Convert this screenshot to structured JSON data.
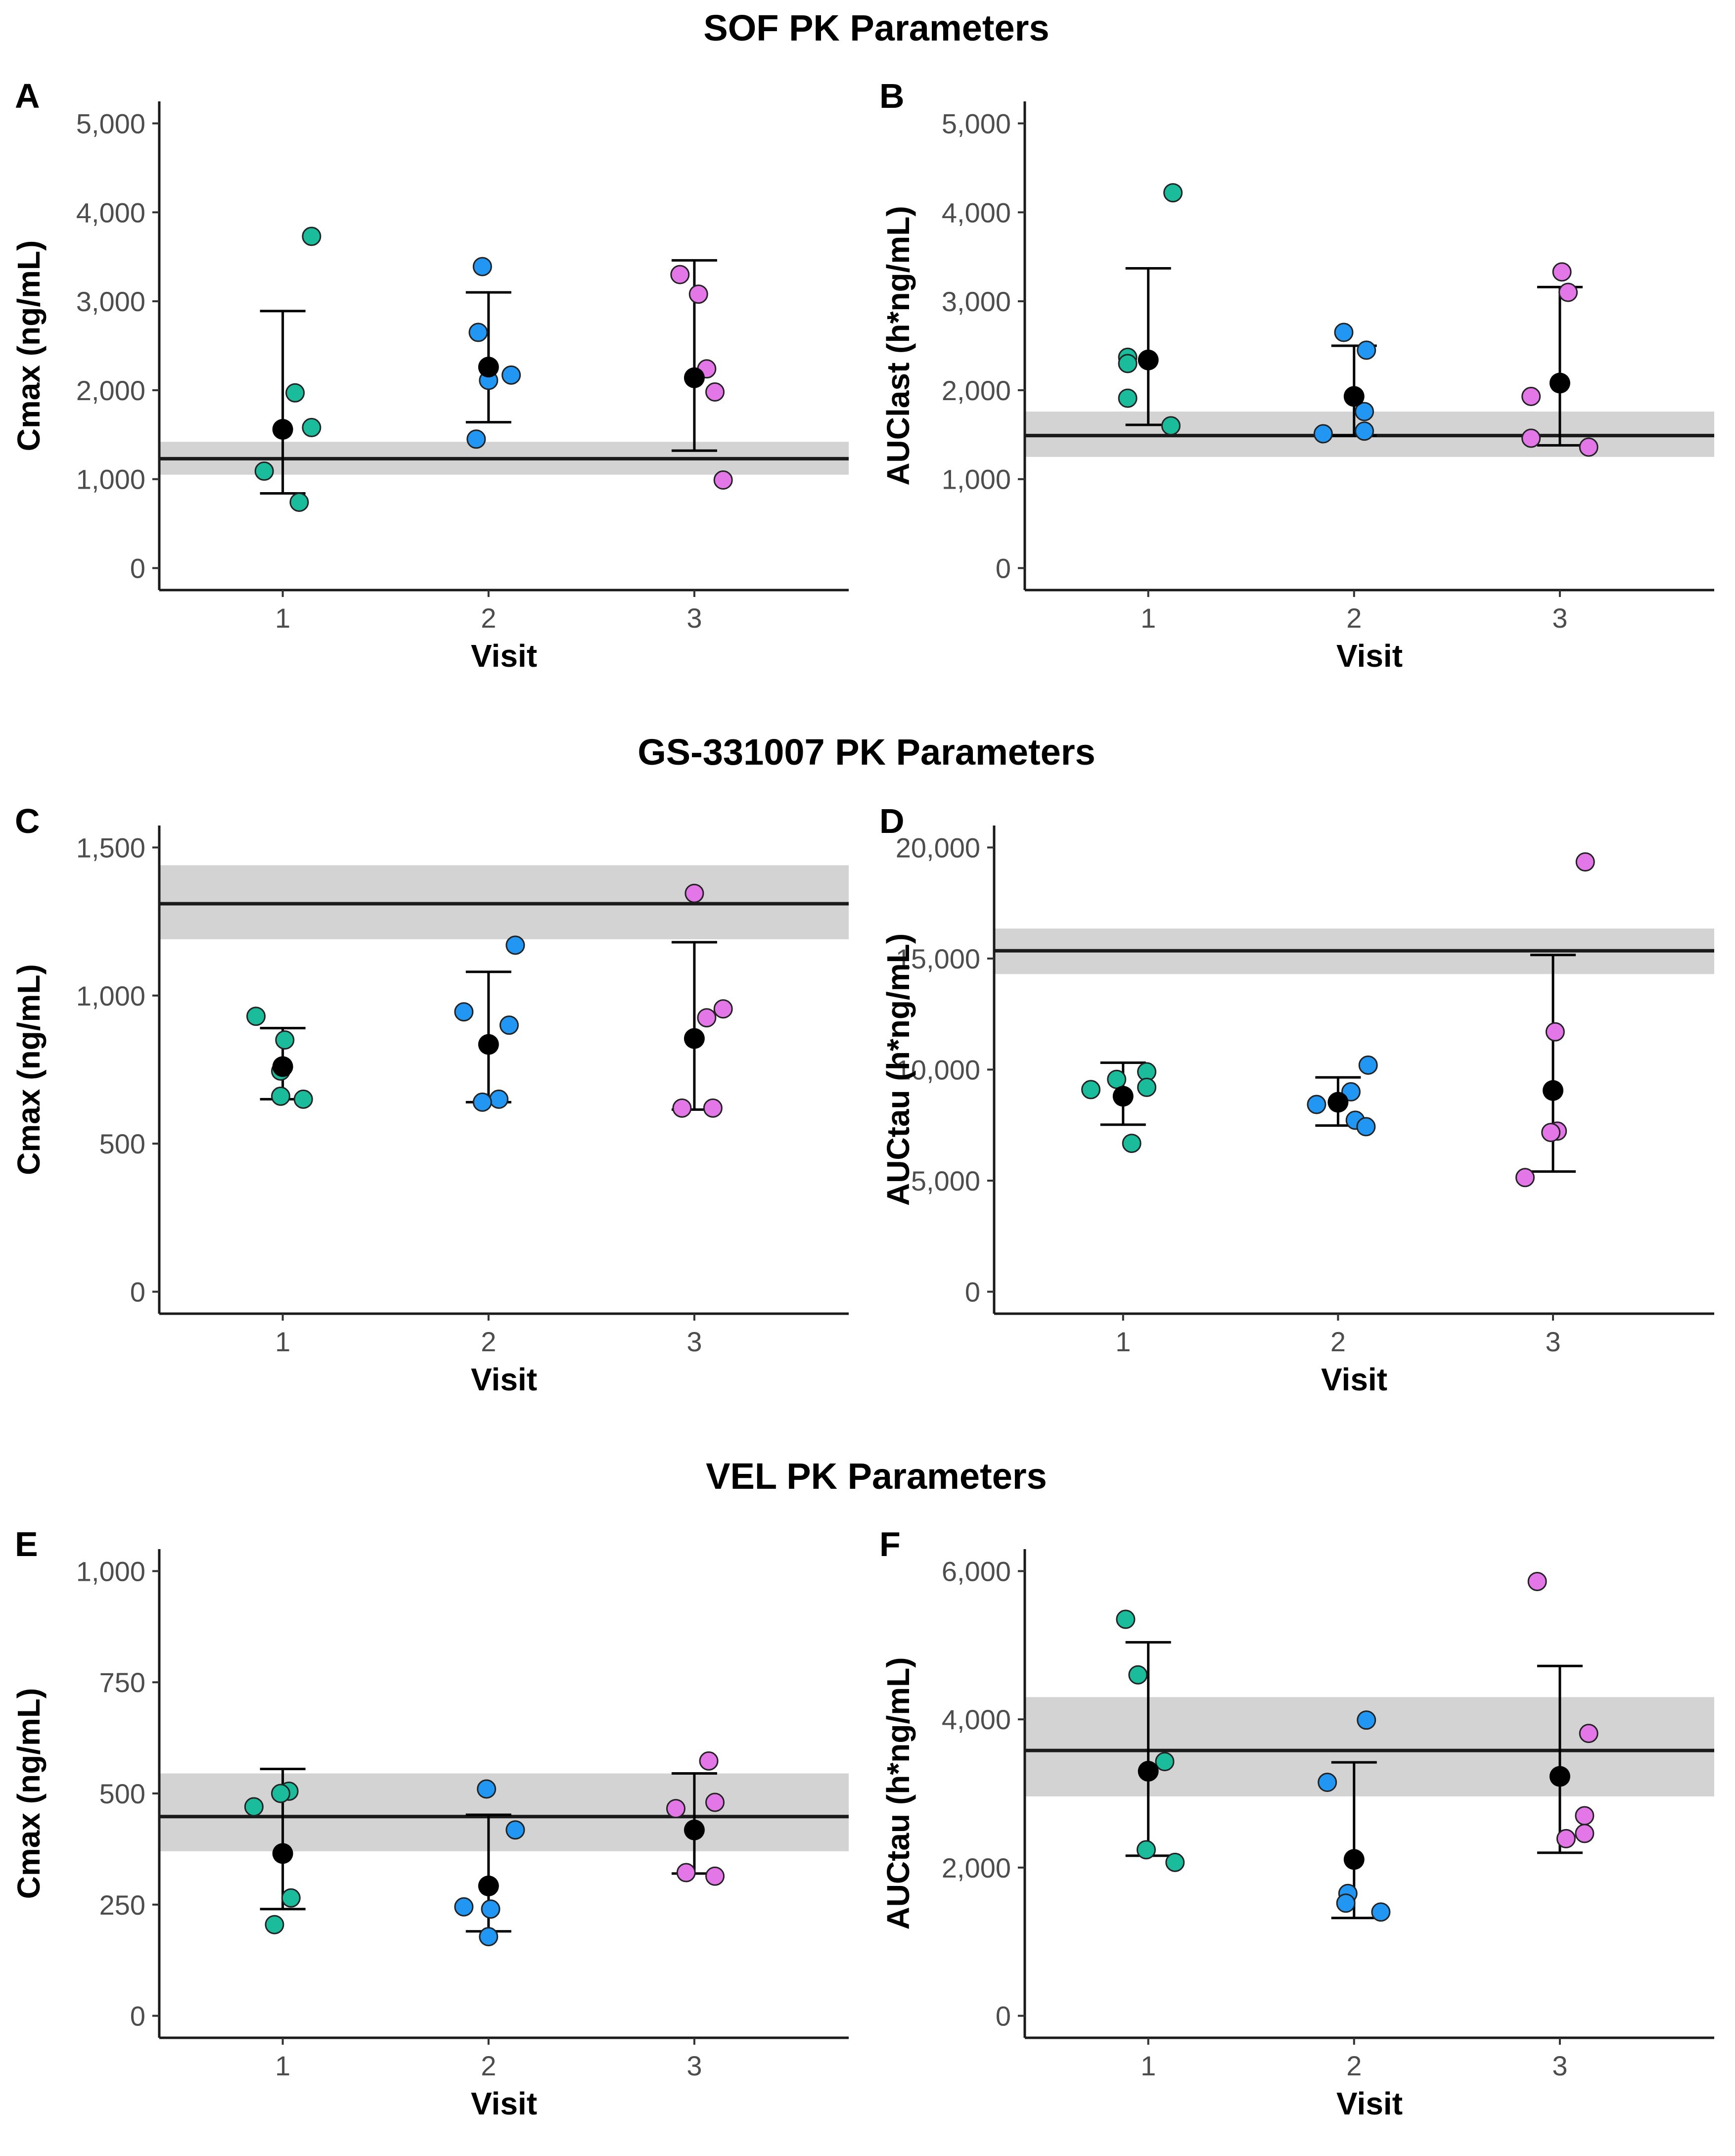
{
  "section_titles": [
    "SOF PK Parameters",
    "GS-331007 PK Parameters",
    "VEL PK Parameters"
  ],
  "colors": {
    "visit1": "#1abc9c",
    "visit2": "#2196f3",
    "visit3": "#e377e8",
    "mean": "#000000",
    "reference_band": "#d3d3d3",
    "reference_line": "#1a1a1a"
  },
  "chart_data": [
    {
      "panel": "A",
      "section": "SOF PK Parameters",
      "type": "scatter",
      "xlabel": "Visit",
      "ylabel": "Cmax (ng/mL)",
      "categories": [
        "1",
        "2",
        "3"
      ],
      "ylim": [
        0,
        5000
      ],
      "yticks": [
        0,
        1000,
        2000,
        3000,
        4000,
        5000
      ],
      "ytick_labels": [
        "0",
        "1,000",
        "2,000",
        "3,000",
        "4,000",
        "5,000"
      ],
      "reference": {
        "value": 1230,
        "lower": 1050,
        "upper": 1420
      },
      "series": [
        {
          "visit": 1,
          "points": [
            1090,
            740,
            1970,
            1580,
            3730
          ],
          "jitter": [
            -0.09,
            0.08,
            0.06,
            0.14,
            0.14
          ],
          "mean": 1560,
          "error_low": 840,
          "error_high": 2890
        },
        {
          "visit": 2,
          "points": [
            1450,
            2650,
            3390,
            2110,
            2170
          ],
          "jitter": [
            -0.06,
            -0.05,
            -0.03,
            0.0,
            0.11
          ],
          "mean": 2260,
          "error_low": 1640,
          "error_high": 3100
        },
        {
          "visit": 3,
          "points": [
            3300,
            3080,
            2240,
            1980,
            990
          ],
          "jitter": [
            -0.07,
            0.02,
            0.06,
            0.1,
            0.14
          ],
          "mean": 2140,
          "error_low": 1320,
          "error_high": 3460
        }
      ]
    },
    {
      "panel": "B",
      "section": "SOF PK Parameters",
      "type": "scatter",
      "xlabel": "Visit",
      "ylabel": "AUClast (h*ng/mL)",
      "categories": [
        "1",
        "2",
        "3"
      ],
      "ylim": [
        0,
        5000
      ],
      "yticks": [
        0,
        1000,
        2000,
        3000,
        4000,
        5000
      ],
      "ytick_labels": [
        "0",
        "1,000",
        "2,000",
        "3,000",
        "4,000",
        "5,000"
      ],
      "reference": {
        "value": 1490,
        "lower": 1250,
        "upper": 1760
      },
      "series": [
        {
          "visit": 1,
          "points": [
            4220,
            2370,
            2300,
            1910,
            1600
          ],
          "jitter": [
            0.12,
            -0.1,
            -0.1,
            -0.1,
            0.11
          ],
          "mean": 2340,
          "error_low": 1610,
          "error_high": 3370
        },
        {
          "visit": 2,
          "points": [
            2650,
            2450,
            1760,
            1540,
            1510
          ],
          "jitter": [
            -0.05,
            0.06,
            0.05,
            0.05,
            -0.15
          ],
          "mean": 1930,
          "error_low": 1490,
          "error_high": 2500
        },
        {
          "visit": 3,
          "points": [
            3330,
            3100,
            1930,
            1460,
            1360
          ],
          "jitter": [
            0.01,
            0.04,
            -0.14,
            -0.14,
            0.14
          ],
          "mean": 2080,
          "error_low": 1380,
          "error_high": 3160
        }
      ]
    },
    {
      "panel": "C",
      "section": "GS-331007 PK Parameters",
      "type": "scatter",
      "xlabel": "Visit",
      "ylabel": "Cmax (ng/mL)",
      "categories": [
        "1",
        "2",
        "3"
      ],
      "ylim": [
        0,
        1500
      ],
      "yticks": [
        0,
        500,
        1000,
        1500
      ],
      "ytick_labels": [
        "0",
        "500",
        "1,000",
        "1,500"
      ],
      "reference": {
        "value": 1310,
        "lower": 1190,
        "upper": 1440
      },
      "series": [
        {
          "visit": 1,
          "points": [
            930,
            850,
            745,
            660,
            650
          ],
          "jitter": [
            -0.13,
            0.01,
            -0.01,
            -0.01,
            0.1
          ],
          "mean": 760,
          "error_low": 650,
          "error_high": 890
        },
        {
          "visit": 2,
          "points": [
            945,
            1170,
            900,
            650,
            640
          ],
          "jitter": [
            -0.12,
            0.13,
            0.1,
            0.05,
            -0.03
          ],
          "mean": 835,
          "error_low": 640,
          "error_high": 1080
        },
        {
          "visit": 3,
          "points": [
            1345,
            955,
            925,
            620,
            620
          ],
          "jitter": [
            0.0,
            0.14,
            0.06,
            -0.06,
            0.09
          ],
          "mean": 855,
          "error_low": 615,
          "error_high": 1180
        }
      ]
    },
    {
      "panel": "D",
      "section": "GS-331007 PK Parameters",
      "type": "scatter",
      "xlabel": "Visit",
      "ylabel": "AUCtau (h*ng/mL)",
      "categories": [
        "1",
        "2",
        "3"
      ],
      "ylim": [
        0,
        20000
      ],
      "yticks": [
        0,
        5000,
        10000,
        15000,
        20000
      ],
      "ytick_labels": [
        "0",
        "5,000",
        "10,000",
        "15,000",
        "20,000"
      ],
      "reference": {
        "value": 15350,
        "lower": 14300,
        "upper": 16350
      },
      "series": [
        {
          "visit": 1,
          "points": [
            9900,
            9560,
            9200,
            9100,
            6680
          ],
          "jitter": [
            0.11,
            -0.03,
            0.11,
            -0.15,
            0.04
          ],
          "mean": 8800,
          "error_low": 7520,
          "error_high": 10310
        },
        {
          "visit": 2,
          "points": [
            10200,
            9000,
            8430,
            7720,
            7430
          ],
          "jitter": [
            0.14,
            0.06,
            -0.1,
            0.08,
            0.13
          ],
          "mean": 8530,
          "error_low": 7480,
          "error_high": 9650
        },
        {
          "visit": 3,
          "points": [
            19350,
            11700,
            7230,
            7170,
            5140
          ],
          "jitter": [
            0.15,
            0.01,
            0.02,
            -0.01,
            -0.13
          ],
          "mean": 9060,
          "error_low": 5410,
          "error_high": 15160
        }
      ]
    },
    {
      "panel": "E",
      "section": "VEL PK Parameters",
      "type": "scatter",
      "xlabel": "Visit",
      "ylabel": "Cmax (ng/mL)",
      "categories": [
        "1",
        "2",
        "3"
      ],
      "ylim": [
        0,
        1000
      ],
      "yticks": [
        0,
        250,
        500,
        750,
        1000
      ],
      "ytick_labels": [
        "0",
        "250",
        "500",
        "750",
        "1,000"
      ],
      "reference": {
        "value": 448,
        "lower": 370,
        "upper": 545
      },
      "series": [
        {
          "visit": 1,
          "points": [
            505,
            500,
            470,
            265,
            205
          ],
          "jitter": [
            0.03,
            -0.01,
            -0.14,
            0.04,
            -0.04
          ],
          "mean": 365,
          "error_low": 240,
          "error_high": 555
        },
        {
          "visit": 2,
          "points": [
            510,
            418,
            245,
            240,
            178
          ],
          "jitter": [
            -0.01,
            0.13,
            -0.12,
            0.01,
            0.0
          ],
          "mean": 292,
          "error_low": 190,
          "error_high": 452
        },
        {
          "visit": 3,
          "points": [
            573,
            480,
            466,
            322,
            314
          ],
          "jitter": [
            0.07,
            0.1,
            -0.09,
            -0.04,
            0.1
          ],
          "mean": 418,
          "error_low": 320,
          "error_high": 545
        }
      ]
    },
    {
      "panel": "F",
      "section": "VEL PK Parameters",
      "type": "scatter",
      "xlabel": "Visit",
      "ylabel": "AUCtau (h*ng/mL)",
      "categories": [
        "1",
        "2",
        "3"
      ],
      "ylim": [
        0,
        6000
      ],
      "yticks": [
        0,
        2000,
        4000,
        6000
      ],
      "ytick_labels": [
        "0",
        "2,000",
        "4,000",
        "6,000"
      ],
      "reference": {
        "value": 3580,
        "lower": 2960,
        "upper": 4300
      },
      "series": [
        {
          "visit": 1,
          "points": [
            5350,
            4600,
            3430,
            2240,
            2070
          ],
          "jitter": [
            -0.11,
            -0.05,
            0.08,
            -0.01,
            0.13
          ],
          "mean": 3300,
          "error_low": 2160,
          "error_high": 5040
        },
        {
          "visit": 2,
          "points": [
            3990,
            3150,
            1650,
            1520,
            1400
          ],
          "jitter": [
            0.06,
            -0.13,
            -0.03,
            -0.04,
            0.13
          ],
          "mean": 2110,
          "error_low": 1320,
          "error_high": 3420
        },
        {
          "visit": 3,
          "points": [
            5860,
            3810,
            2700,
            2460,
            2390
          ],
          "jitter": [
            -0.11,
            0.14,
            0.12,
            0.12,
            0.03
          ],
          "mean": 3230,
          "error_low": 2200,
          "error_high": 4720
        }
      ]
    }
  ]
}
